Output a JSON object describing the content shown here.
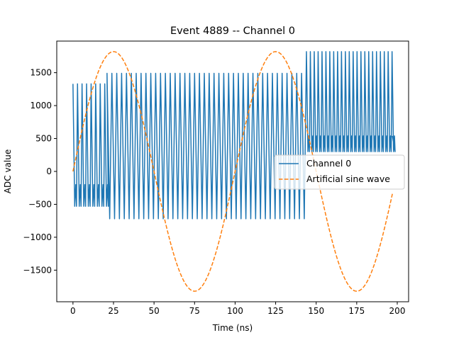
{
  "chart_data": {
    "type": "line",
    "title": "Event 4889 -- Channel 0",
    "xlabel": "Time (ns)",
    "ylabel": "ADC value",
    "xlim": [
      -10,
      207
    ],
    "ylim": [
      -1980,
      1980
    ],
    "xticks": [
      0,
      25,
      50,
      75,
      100,
      125,
      150,
      175,
      200
    ],
    "xtick_labels": [
      "0",
      "25",
      "50",
      "75",
      "100",
      "125",
      "150",
      "175",
      "200"
    ],
    "yticks": [
      -1500,
      -1000,
      -500,
      0,
      500,
      1000,
      1500
    ],
    "ytick_labels": [
      "−1500",
      "−1000",
      "−500",
      "0",
      "500",
      "1000",
      "1500"
    ],
    "grid": false,
    "legend_position": "center-right",
    "series": [
      {
        "name": "Channel 0",
        "style": "solid",
        "color": "#1f77b4",
        "segments": [
          {
            "x_start": 0,
            "x_end": 21,
            "period": 2.8,
            "high": 1330,
            "low": -530,
            "dip": -200
          },
          {
            "x_start": 21,
            "x_end": 144,
            "period": 3.0,
            "high": 1490,
            "low": -720,
            "dip": null
          },
          {
            "x_start": 144,
            "x_end": 197,
            "period": 2.4,
            "high": 1820,
            "low": 300,
            "dip": 540
          }
        ]
      },
      {
        "name": "Artificial sine wave",
        "style": "dashed",
        "color": "#ff7f0e",
        "amplitude": 1820,
        "period": 100,
        "x_start": 0,
        "x_end": 197
      }
    ]
  }
}
